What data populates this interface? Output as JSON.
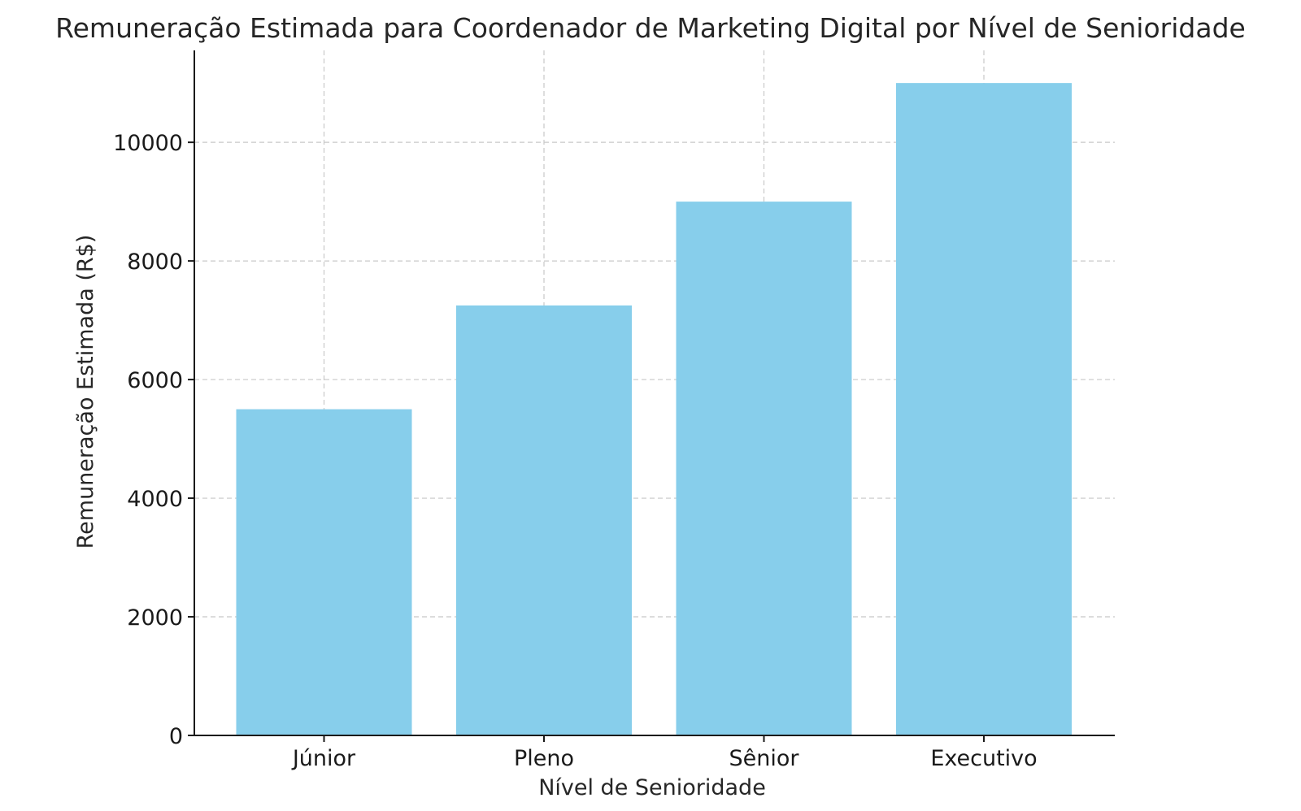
{
  "chart_data": {
    "type": "bar",
    "title": "Remuneração Estimada para Coordenador de Marketing Digital por Nível de Senioridade",
    "xlabel": "Nível de Senioridade",
    "ylabel": "Remuneração Estimada (R$)",
    "categories": [
      "Júnior",
      "Pleno",
      "Sênior",
      "Executivo"
    ],
    "values": [
      5500,
      7250,
      9000,
      11000
    ],
    "ylim": [
      0,
      11550
    ],
    "yticks": [
      0,
      2000,
      4000,
      6000,
      8000,
      10000
    ],
    "grid": true,
    "bar_color": "#87CEEB"
  }
}
